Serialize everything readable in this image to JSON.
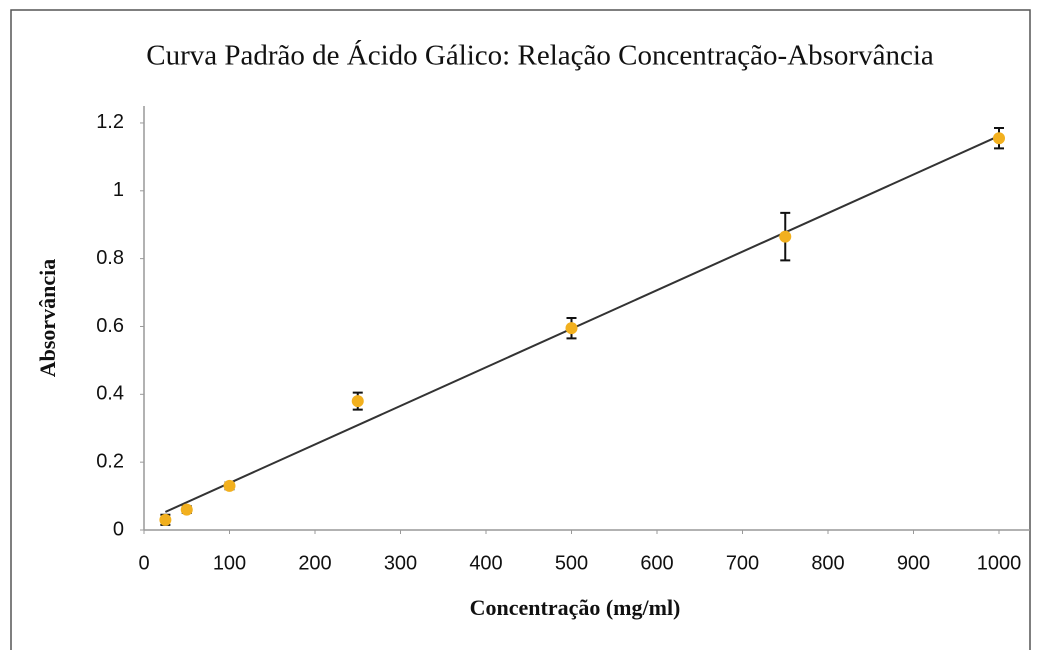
{
  "chart_data": {
    "type": "scatter",
    "title": "Curva Padrão de Ácido Gálico: Relação Concentração-Absorvância",
    "x_label": "Concentração (mg/ml)",
    "y_label": "Absorvância",
    "x": [
      25,
      50,
      100,
      250,
      500,
      750,
      1000
    ],
    "values": [
      0.03,
      0.06,
      0.13,
      0.38,
      0.595,
      0.865,
      1.155
    ],
    "errors": [
      0.015,
      0.01,
      0.01,
      0.025,
      0.03,
      0.07,
      0.03
    ],
    "color": "#f2b01e",
    "trendline": "linear",
    "xlim": [
      0,
      1000
    ],
    "xticks": [
      0,
      100,
      200,
      300,
      400,
      500,
      600,
      700,
      800,
      900,
      1000
    ],
    "ylim": [
      0,
      1.25
    ],
    "yticks": [
      0,
      0.2,
      0.4,
      0.6,
      0.8,
      1,
      1.2
    ]
  }
}
